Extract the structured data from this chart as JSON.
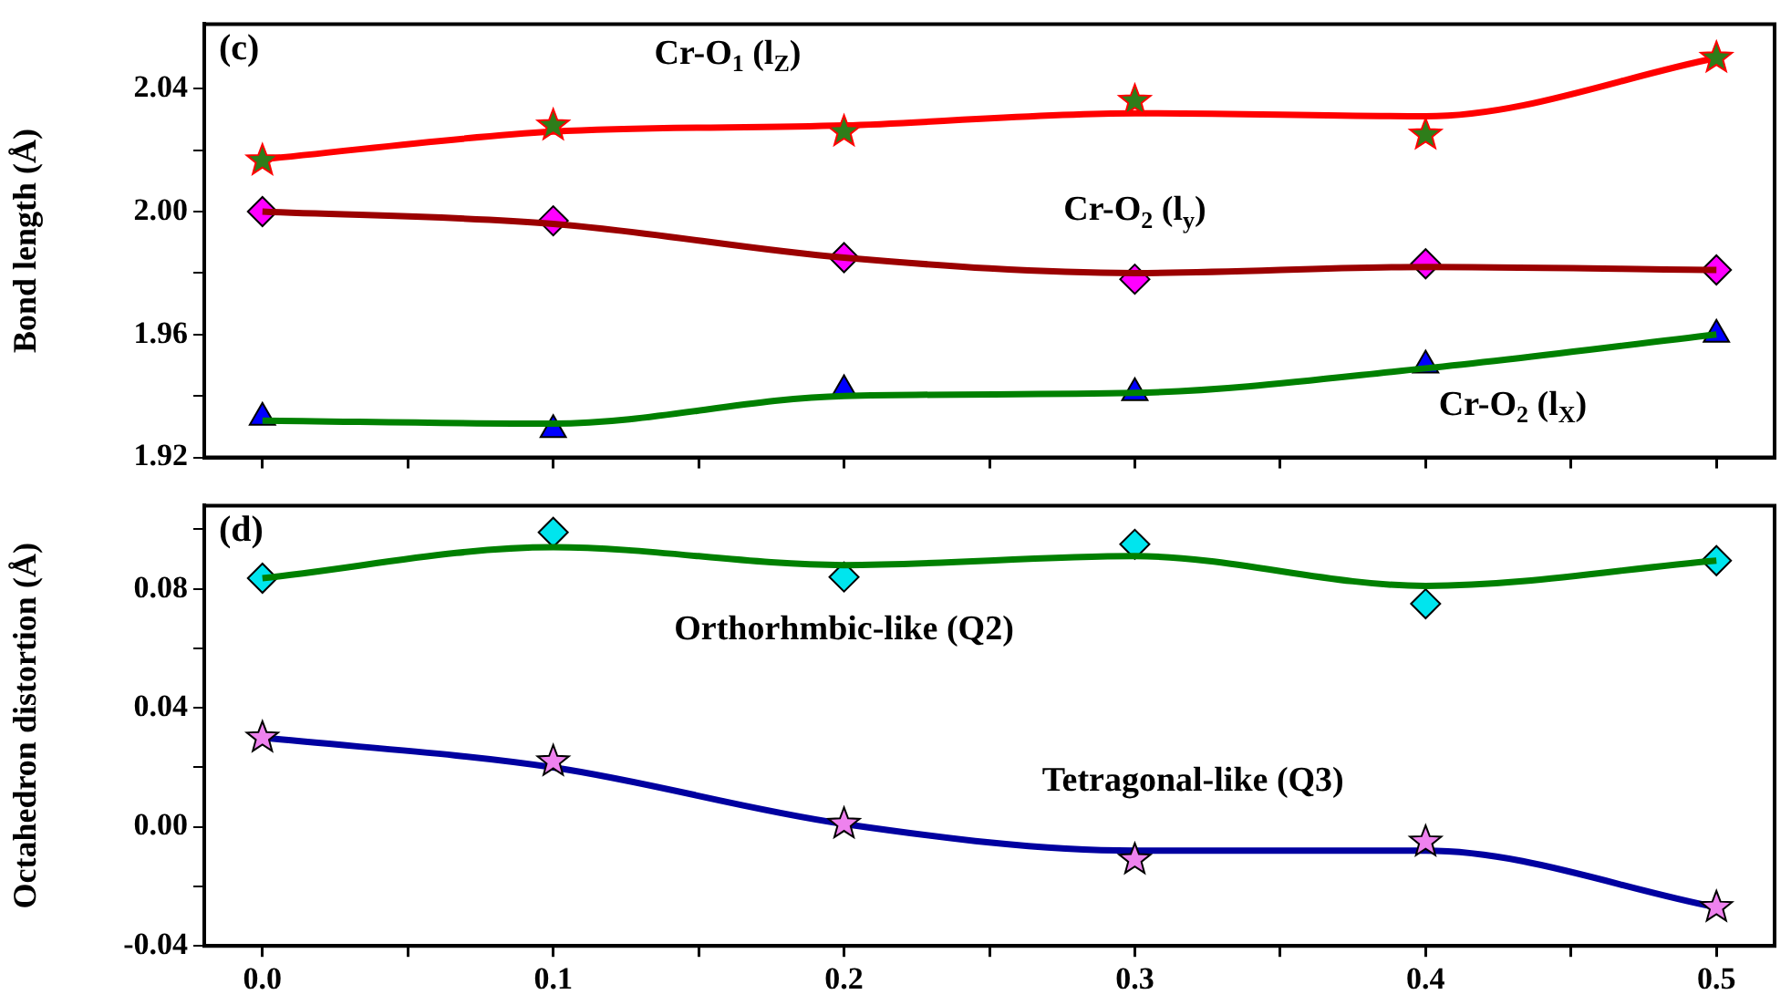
{
  "chart_data": [
    {
      "type": "line",
      "annotations": [
        "(c)"
      ],
      "ylabel": "Bond length (Å)",
      "tick_labels": "y",
      "x": [
        0,
        0.1,
        0.2,
        0.3,
        0.4,
        0.5
      ],
      "xlim": [
        -0.02,
        0.52
      ],
      "xticks": [
        {
          "value": 0,
          "label": null
        },
        {
          "value": 0.05,
          "label": null
        },
        {
          "value": 0.1,
          "label": null
        },
        {
          "value": 0.15,
          "label": null
        },
        {
          "value": 0.2,
          "label": null
        },
        {
          "value": 0.25,
          "label": null
        },
        {
          "value": 0.3,
          "label": null
        },
        {
          "value": 0.35,
          "label": null
        },
        {
          "value": 0.4,
          "label": null
        },
        {
          "value": 0.45,
          "label": null
        },
        {
          "value": 0.5,
          "label": null
        }
      ],
      "ylim": [
        1.92,
        2.061
      ],
      "yticks": [
        1.92,
        {
          "value": 1.94,
          "label": null
        },
        1.96,
        {
          "value": 1.98,
          "label": null
        },
        {
          "value": 2.0,
          "label": "2.00"
        },
        {
          "value": 2.02,
          "label": null
        },
        2.04
      ],
      "series": [
        {
          "name": "Cr-O$_{1}$ (l$_{Z}$)",
          "type": "line",
          "color": "#ff0000",
          "marker": "none",
          "values": [
            2.017,
            2.026,
            2.028,
            2.032,
            2.031,
            2.05
          ]
        },
        {
          "type": "scatter",
          "color": "#2e7d1a",
          "marker": "star",
          "values": [
            2.0166,
            2.028,
            2.026,
            2.036,
            2.025,
            2.05
          ]
        },
        {
          "name": "Cr-O$_{2}$ (l$_{y}$)",
          "type": "line",
          "color": "#9b0000",
          "marker": "none",
          "values": [
            2.0,
            1.996,
            1.985,
            1.98,
            1.982,
            1.981
          ]
        },
        {
          "type": "scatter",
          "color": "#ff00ff",
          "marker": "diamond",
          "values": [
            2.0,
            1.997,
            1.985,
            1.978,
            1.983,
            1.981
          ]
        },
        {
          "name": "Cr-O$_{2}$ (l$_{X}$)",
          "type": "line",
          "color": "#008000",
          "marker": "none",
          "values": [
            1.932,
            1.931,
            1.94,
            1.941,
            1.949,
            1.96
          ]
        },
        {
          "type": "scatter",
          "color": "#0000ff",
          "marker": "triangle",
          "values": [
            1.933,
            1.929,
            1.942,
            1.941,
            1.95,
            1.96
          ]
        }
      ]
    },
    {
      "type": "line",
      "annotations": [
        "(d)"
      ],
      "ylabel": "Octahedron distortion (Å)",
      "x": [
        0,
        0.1,
        0.2,
        0.3,
        0.4,
        0.5
      ],
      "xlim": [
        -0.02,
        0.52
      ],
      "xticks": [
        {
          "value": 0,
          "label": "0.0"
        },
        {
          "value": 0.05,
          "label": null
        },
        0.1,
        {
          "value": 0.15,
          "label": null
        },
        0.2,
        {
          "value": 0.25,
          "label": null
        },
        0.3,
        {
          "value": 0.35,
          "label": null
        },
        0.4,
        {
          "value": 0.45,
          "label": null
        },
        0.5
      ],
      "ylim": [
        -0.04,
        0.108
      ],
      "yticks": [
        -0.04,
        {
          "value": -0.02,
          "label": null
        },
        {
          "value": 0,
          "label": "0.00"
        },
        {
          "value": 0.02,
          "label": null
        },
        0.04,
        {
          "value": 0.06,
          "label": null
        },
        0.08,
        {
          "value": 0.1,
          "label": null
        }
      ],
      "series": [
        {
          "name": "Orthorhmbic-like (Q2)",
          "type": "line",
          "color": "#008000",
          "marker": "none",
          "values": [
            0.0836,
            0.094,
            0.088,
            0.091,
            0.081,
            0.0895
          ]
        },
        {
          "type": "scatter",
          "color": "#00e5ee",
          "marker": "diamond",
          "values": [
            0.0836,
            0.099,
            0.084,
            0.095,
            0.075,
            0.0895
          ]
        },
        {
          "name": "Tetragonal-like (Q3)",
          "type": "line",
          "color": "#0000a0",
          "marker": "none",
          "values": [
            0.03,
            0.02,
            0.001,
            -0.008,
            -0.008,
            -0.027
          ]
        },
        {
          "type": "scatter",
          "color": "#ee82ee",
          "marker": "star",
          "values": [
            0.03,
            0.022,
            0.001,
            -0.011,
            -0.005,
            -0.027
          ]
        }
      ]
    }
  ]
}
